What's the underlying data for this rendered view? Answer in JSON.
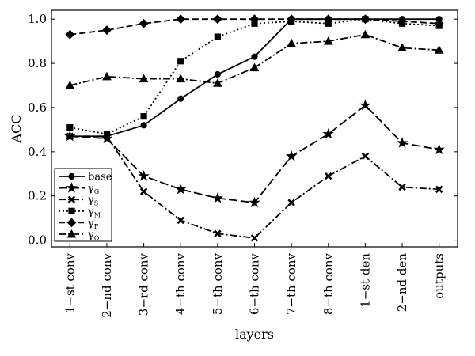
{
  "chart_data": {
    "type": "line",
    "xlabel": "layers",
    "ylabel": "ACC",
    "ylim": [
      -0.03,
      1.04
    ],
    "yticks": [
      "0.0",
      "0.2",
      "0.4",
      "0.6",
      "0.8",
      "1.0"
    ],
    "grid": false,
    "legend_position": "bottom-left",
    "categories": [
      "1−st conv",
      "2−nd conv",
      "3−rd conv",
      "4−th conv",
      "5−th conv",
      "6−th conv",
      "7−th conv",
      "8−th conv",
      "1−st den",
      "2−nd den",
      "outputs"
    ],
    "series": [
      {
        "name": "base",
        "sym": "",
        "sub": "",
        "marker": "circle",
        "dash": "solid",
        "values": [
          0.47,
          0.47,
          0.52,
          0.64,
          0.75,
          0.83,
          1.0,
          1.0,
          1.0,
          1.0,
          1.0
        ]
      },
      {
        "name": "γG",
        "sym": "γ",
        "sub": "G",
        "marker": "star",
        "dash": "longdash",
        "values": [
          0.47,
          0.46,
          0.29,
          0.23,
          0.19,
          0.17,
          0.38,
          0.48,
          0.61,
          0.44,
          0.41
        ]
      },
      {
        "name": "γS",
        "sym": "γ",
        "sub": "S",
        "marker": "x",
        "dash": "dashdot",
        "values": [
          0.47,
          0.47,
          0.22,
          0.09,
          0.03,
          0.01,
          0.17,
          0.29,
          0.38,
          0.24,
          0.23
        ]
      },
      {
        "name": "γM",
        "sym": "γ",
        "sub": "M",
        "marker": "square",
        "dash": "dotted",
        "values": [
          0.51,
          0.48,
          0.56,
          0.81,
          0.92,
          0.98,
          0.99,
          0.98,
          1.0,
          0.98,
          0.97
        ]
      },
      {
        "name": "γF",
        "sym": "γ",
        "sub": "F",
        "marker": "diamond",
        "dash": "dashed",
        "values": [
          0.93,
          0.95,
          0.98,
          1.0,
          1.0,
          1.0,
          1.0,
          1.0,
          1.0,
          0.99,
          0.98
        ]
      },
      {
        "name": "γO",
        "sym": "γ",
        "sub": "O",
        "marker": "triangle",
        "dash": "dashdot",
        "values": [
          0.7,
          0.74,
          0.73,
          0.73,
          0.71,
          0.78,
          0.89,
          0.9,
          0.93,
          0.87,
          0.86
        ]
      }
    ]
  }
}
